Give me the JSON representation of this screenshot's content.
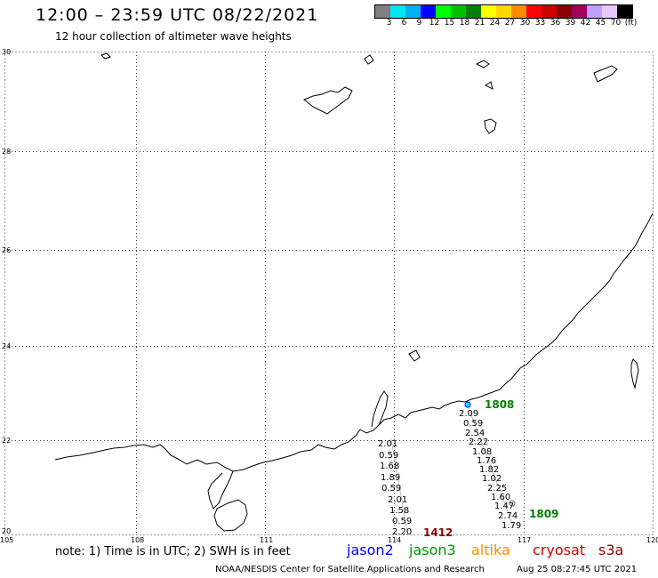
{
  "header": {
    "title": "12:00 – 23:59 UTC 08/22/2021",
    "subtitle": "12 hour collection of altimeter wave heights"
  },
  "legend": {
    "unit": "(ft)",
    "bins": [
      {
        "label": "3",
        "color": "#7f7f7f"
      },
      {
        "label": "6",
        "color": "#00e5ee"
      },
      {
        "label": "9",
        "color": "#00b0f0"
      },
      {
        "label": "12",
        "color": "#0000ff"
      },
      {
        "label": "15",
        "color": "#00ff00"
      },
      {
        "label": "18",
        "color": "#00c000"
      },
      {
        "label": "21",
        "color": "#008000"
      },
      {
        "label": "24",
        "color": "#ffff00"
      },
      {
        "label": "27",
        "color": "#ffd700"
      },
      {
        "label": "30",
        "color": "#ff8c00"
      },
      {
        "label": "33",
        "color": "#ff0000"
      },
      {
        "label": "36",
        "color": "#cc0000"
      },
      {
        "label": "39",
        "color": "#8b0000"
      },
      {
        "label": "42",
        "color": "#a0005a"
      },
      {
        "label": "45",
        "color": "#c0a0ff"
      },
      {
        "label": "70",
        "color": "#e8c8ff"
      },
      {
        "label": "",
        "color": "#000000"
      }
    ]
  },
  "map": {
    "lat_labels": [
      "30",
      "28",
      "26",
      "24",
      "22",
      "20"
    ],
    "lon_labels": [
      "105",
      "108",
      "111",
      "114",
      "117",
      "120"
    ],
    "pass_labels": [
      {
        "id": "1808",
        "color": "#008000"
      },
      {
        "id": "1809",
        "color": "#008000"
      },
      {
        "id": "1412",
        "color": "#8b0000"
      }
    ],
    "track_1412": [
      "2.01",
      "0.59",
      "1.68",
      "1.89",
      "0.59",
      "2.01",
      "1.58",
      "0.59",
      "2.20"
    ],
    "track_1808": [
      "2.09",
      "0.59",
      "2.54",
      "2.22",
      "1.08",
      "1.76",
      "1.82",
      "1.02",
      "2.25",
      "1.60",
      "1.47",
      "2.74",
      "1.79"
    ]
  },
  "footer": {
    "note": "note: 1) Time is in UTC; 2) SWH is in feet",
    "satellites": [
      {
        "name": "jason2",
        "color": "#0000ff"
      },
      {
        "name": "jason3",
        "color": "#009900"
      },
      {
        "name": "altika",
        "color": "#ff8c00"
      },
      {
        "name": "cryosat",
        "color": "#cc0000"
      },
      {
        "name": "s3a",
        "color": "#8b0000"
      }
    ],
    "credit": "NOAA/NESDIS Center for Satellite Applications and Research",
    "timestamp": "Aug 25 08:27:45 UTC 2021"
  }
}
